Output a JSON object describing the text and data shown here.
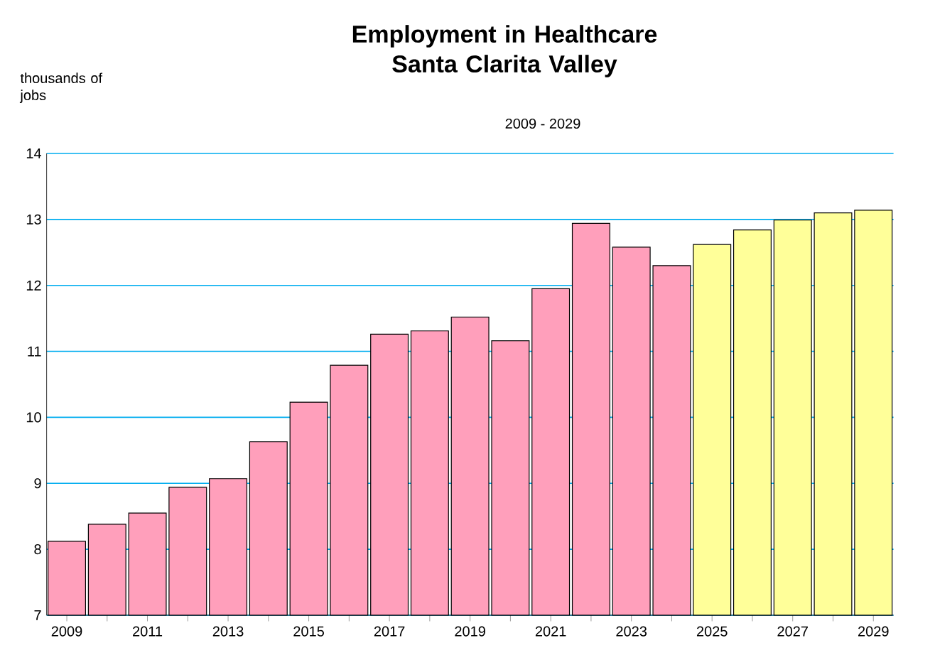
{
  "chart_data": {
    "type": "bar",
    "title": "Employment in Healthcare Santa Clarita Valley",
    "subtitle": "2009 - 2029",
    "ylabel": "thousands of jobs",
    "categories": [
      "2009",
      null,
      "2011",
      null,
      "2013",
      null,
      "2015",
      null,
      "2017",
      null,
      "2019",
      null,
      "2021",
      null,
      "2023",
      null,
      "2025",
      null,
      "2027",
      null,
      "2029"
    ],
    "values": [
      8.12,
      8.38,
      8.55,
      8.94,
      9.07,
      9.63,
      10.23,
      10.79,
      11.26,
      11.31,
      11.52,
      11.16,
      11.95,
      12.94,
      12.58,
      12.3,
      12.62,
      12.84,
      12.99,
      13.1,
      13.14
    ],
    "colors": [
      "#ff9fbb",
      "#ff9fbb",
      "#ff9fbb",
      "#ff9fbb",
      "#ff9fbb",
      "#ff9fbb",
      "#ff9fbb",
      "#ff9fbb",
      "#ff9fbb",
      "#ff9fbb",
      "#ff9fbb",
      "#ff9fbb",
      "#ff9fbb",
      "#ff9fbb",
      "#ff9fbb",
      "#ff9fbb",
      "#ffff99",
      "#ffff99",
      "#ffff99",
      "#ffff99",
      "#ffff99"
    ],
    "ylim": [
      7,
      14
    ],
    "yticks": [
      7,
      8,
      9,
      10,
      11,
      12,
      13,
      14
    ],
    "grid": "y"
  }
}
